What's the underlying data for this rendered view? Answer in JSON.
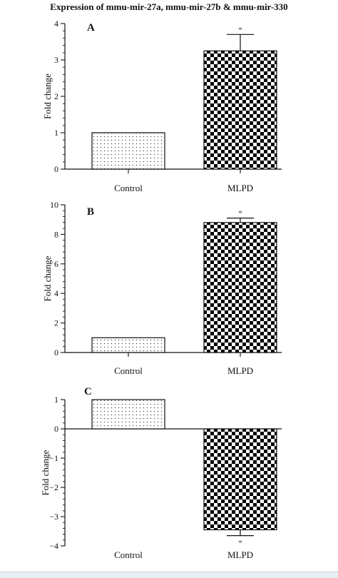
{
  "figure_title": "Expression of mmu-mir-27a, mmu-mir-27b & mmu-mir-330",
  "chart_data": [
    {
      "panel": "A",
      "type": "bar",
      "categories": [
        "Control",
        "MLPD"
      ],
      "values": [
        1.0,
        3.25
      ],
      "error": [
        0,
        0.45
      ],
      "significance": [
        "",
        "*"
      ],
      "ylabel": "Fold change",
      "ylim": [
        0,
        4
      ],
      "yticks": [
        0,
        1,
        2,
        3,
        4
      ],
      "grid": false
    },
    {
      "panel": "B",
      "type": "bar",
      "categories": [
        "Control",
        "MLPD"
      ],
      "values": [
        1.0,
        8.8
      ],
      "error": [
        0,
        0.3
      ],
      "significance": [
        "",
        "*"
      ],
      "ylabel": "Fold change",
      "ylim": [
        0,
        10
      ],
      "yticks": [
        0,
        2,
        4,
        6,
        8,
        10
      ],
      "grid": false
    },
    {
      "panel": "C",
      "type": "bar",
      "categories": [
        "Control",
        "MLPD"
      ],
      "values": [
        1.0,
        -3.45
      ],
      "error": [
        0,
        0.2
      ],
      "significance": [
        "",
        "*"
      ],
      "ylabel": "Fold change",
      "ylim": [
        -4,
        1
      ],
      "yticks": [
        -4,
        -3,
        -2,
        -1,
        0,
        1
      ],
      "grid": false
    }
  ],
  "colors": {
    "ink": "#111111",
    "control_fill": "dotted",
    "mlpd_fill": "checkerboard"
  }
}
